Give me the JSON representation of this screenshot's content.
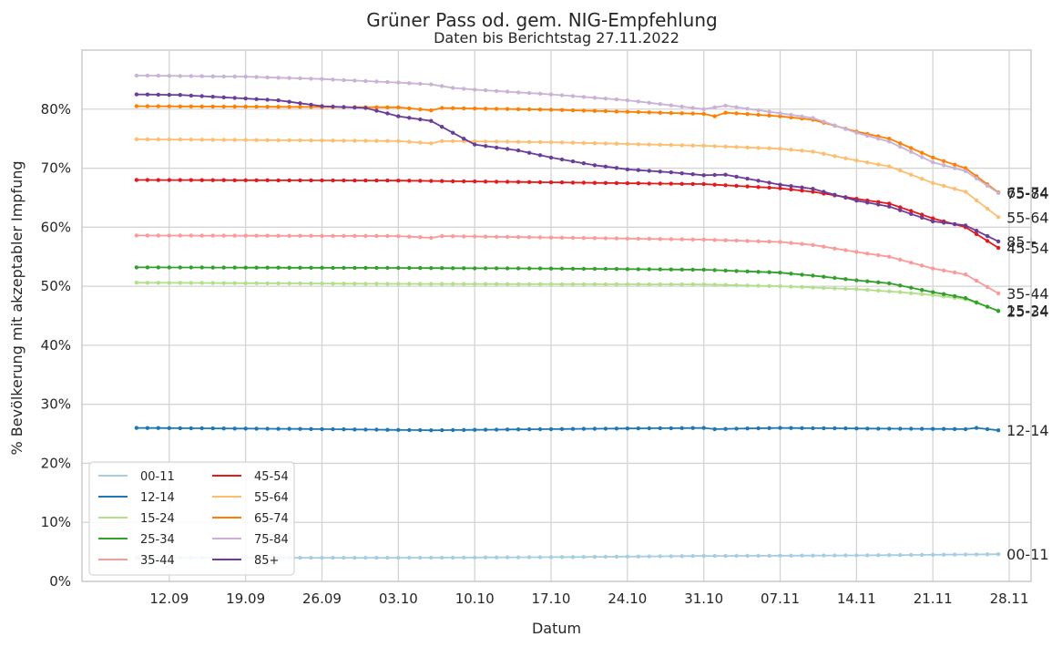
{
  "chart_data": {
    "type": "line",
    "title": "Grüner Pass od. gem. NIG-Empfehlung",
    "subtitle": "Daten bis Berichtstag 27.11.2022",
    "xlabel": "Datum",
    "ylabel": "% Bevölkerung mit akzeptabler Impfung",
    "x_ticks": [
      "12.09",
      "19.09",
      "26.09",
      "03.10",
      "10.10",
      "17.10",
      "24.10",
      "31.10",
      "07.11",
      "14.11",
      "21.11",
      "28.11"
    ],
    "y_ticks": [
      "0%",
      "10%",
      "20%",
      "30%",
      "40%",
      "50%",
      "60%",
      "70%",
      "80%"
    ],
    "xlim": [
      "2022-09-04",
      "2022-11-30"
    ],
    "ylim": [
      0,
      90
    ],
    "grid": true,
    "legend_position": "lower-left",
    "x_start": "2022-09-09",
    "x_end": "2022-11-27",
    "series": [
      {
        "name": "00-11",
        "color": "#a6cee3",
        "end_label": "00-11",
        "points": [
          [
            "2022-09-09",
            4.0
          ],
          [
            "2022-10-03",
            4.0
          ],
          [
            "2022-10-17",
            4.1
          ],
          [
            "2022-10-31",
            4.3
          ],
          [
            "2022-11-14",
            4.4
          ],
          [
            "2022-11-27",
            4.6
          ]
        ]
      },
      {
        "name": "12-14",
        "color": "#1f78b4",
        "end_label": "12-14",
        "points": [
          [
            "2022-09-09",
            26.0
          ],
          [
            "2022-09-26",
            25.8
          ],
          [
            "2022-10-06",
            25.6
          ],
          [
            "2022-10-17",
            25.8
          ],
          [
            "2022-10-31",
            26.0
          ],
          [
            "2022-11-01",
            25.8
          ],
          [
            "2022-11-07",
            26.0
          ],
          [
            "2022-11-14",
            25.9
          ],
          [
            "2022-11-24",
            25.8
          ],
          [
            "2022-11-25",
            26.0
          ],
          [
            "2022-11-27",
            25.6
          ]
        ]
      },
      {
        "name": "15-24",
        "color": "#b2df8a",
        "end_label": "15-24",
        "points": [
          [
            "2022-09-09",
            50.6
          ],
          [
            "2022-10-03",
            50.4
          ],
          [
            "2022-10-31",
            50.3
          ],
          [
            "2022-11-07",
            50.0
          ],
          [
            "2022-11-14",
            49.5
          ],
          [
            "2022-11-18",
            49.0
          ],
          [
            "2022-11-21",
            48.5
          ],
          [
            "2022-11-24",
            47.8
          ],
          [
            "2022-11-27",
            45.9
          ]
        ]
      },
      {
        "name": "25-34",
        "color": "#33a02c",
        "end_label": "25-34",
        "points": [
          [
            "2022-09-09",
            53.2
          ],
          [
            "2022-10-03",
            53.1
          ],
          [
            "2022-10-17",
            53.0
          ],
          [
            "2022-10-31",
            52.8
          ],
          [
            "2022-11-07",
            52.3
          ],
          [
            "2022-11-10",
            51.8
          ],
          [
            "2022-11-14",
            51.0
          ],
          [
            "2022-11-17",
            50.5
          ],
          [
            "2022-11-21",
            49.0
          ],
          [
            "2022-11-24",
            48.0
          ],
          [
            "2022-11-27",
            45.8
          ]
        ]
      },
      {
        "name": "35-44",
        "color": "#fb9a99",
        "end_label": "35-44",
        "points": [
          [
            "2022-09-09",
            58.6
          ],
          [
            "2022-10-03",
            58.5
          ],
          [
            "2022-10-06",
            58.2
          ],
          [
            "2022-10-07",
            58.5
          ],
          [
            "2022-10-31",
            57.9
          ],
          [
            "2022-11-07",
            57.5
          ],
          [
            "2022-11-10",
            57.0
          ],
          [
            "2022-11-14",
            55.8
          ],
          [
            "2022-11-17",
            55.0
          ],
          [
            "2022-11-21",
            53.0
          ],
          [
            "2022-11-24",
            52.0
          ],
          [
            "2022-11-27",
            48.8
          ]
        ]
      },
      {
        "name": "45-54",
        "color": "#e31a1c",
        "end_label": "45-54",
        "points": [
          [
            "2022-09-09",
            68.0
          ],
          [
            "2022-10-03",
            67.9
          ],
          [
            "2022-10-17",
            67.6
          ],
          [
            "2022-10-31",
            67.3
          ],
          [
            "2022-11-07",
            66.6
          ],
          [
            "2022-11-10",
            66.0
          ],
          [
            "2022-11-14",
            64.8
          ],
          [
            "2022-11-17",
            64.0
          ],
          [
            "2022-11-21",
            61.5
          ],
          [
            "2022-11-24",
            60.0
          ],
          [
            "2022-11-27",
            56.5
          ]
        ]
      },
      {
        "name": "55-64",
        "color": "#fdbf6f",
        "end_label": "55-64",
        "points": [
          [
            "2022-09-09",
            74.9
          ],
          [
            "2022-10-03",
            74.6
          ],
          [
            "2022-10-06",
            74.2
          ],
          [
            "2022-10-07",
            74.6
          ],
          [
            "2022-10-17",
            74.4
          ],
          [
            "2022-10-31",
            73.8
          ],
          [
            "2022-11-07",
            73.3
          ],
          [
            "2022-11-10",
            72.8
          ],
          [
            "2022-11-14",
            71.3
          ],
          [
            "2022-11-17",
            70.3
          ],
          [
            "2022-11-21",
            67.5
          ],
          [
            "2022-11-24",
            66.0
          ],
          [
            "2022-11-27",
            61.7
          ]
        ]
      },
      {
        "name": "65-74",
        "color": "#ff7f00",
        "end_label": "65-74",
        "points": [
          [
            "2022-09-09",
            80.5
          ],
          [
            "2022-10-03",
            80.3
          ],
          [
            "2022-10-06",
            79.8
          ],
          [
            "2022-10-07",
            80.2
          ],
          [
            "2022-10-17",
            79.9
          ],
          [
            "2022-10-31",
            79.2
          ],
          [
            "2022-11-01",
            78.8
          ],
          [
            "2022-11-02",
            79.4
          ],
          [
            "2022-11-07",
            78.8
          ],
          [
            "2022-11-10",
            78.2
          ],
          [
            "2022-11-14",
            76.2
          ],
          [
            "2022-11-17",
            75.0
          ],
          [
            "2022-11-21",
            71.8
          ],
          [
            "2022-11-24",
            70.0
          ],
          [
            "2022-11-27",
            65.9
          ]
        ]
      },
      {
        "name": "75-84",
        "color": "#cab2d6",
        "end_label": "75-84",
        "points": [
          [
            "2022-09-09",
            85.7
          ],
          [
            "2022-09-19",
            85.5
          ],
          [
            "2022-09-26",
            85.1
          ],
          [
            "2022-10-03",
            84.5
          ],
          [
            "2022-10-06",
            84.2
          ],
          [
            "2022-10-08",
            83.6
          ],
          [
            "2022-10-10",
            83.3
          ],
          [
            "2022-10-17",
            82.5
          ],
          [
            "2022-10-24",
            81.5
          ],
          [
            "2022-10-31",
            80.0
          ],
          [
            "2022-11-02",
            80.6
          ],
          [
            "2022-11-07",
            79.3
          ],
          [
            "2022-11-10",
            78.5
          ],
          [
            "2022-11-14",
            76.0
          ],
          [
            "2022-11-17",
            74.5
          ],
          [
            "2022-11-21",
            71.0
          ],
          [
            "2022-11-24",
            69.5
          ],
          [
            "2022-11-27",
            65.8
          ]
        ]
      },
      {
        "name": "85+",
        "color": "#6a3d9a",
        "end_label": "85+",
        "points": [
          [
            "2022-09-09",
            82.5
          ],
          [
            "2022-09-13",
            82.4
          ],
          [
            "2022-09-19",
            81.8
          ],
          [
            "2022-09-22",
            81.5
          ],
          [
            "2022-09-26",
            80.5
          ],
          [
            "2022-09-30",
            80.2
          ],
          [
            "2022-10-03",
            78.8
          ],
          [
            "2022-10-06",
            78.0
          ],
          [
            "2022-10-09",
            75.0
          ],
          [
            "2022-10-10",
            74.0
          ],
          [
            "2022-10-14",
            73.0
          ],
          [
            "2022-10-17",
            71.8
          ],
          [
            "2022-10-21",
            70.5
          ],
          [
            "2022-10-24",
            69.8
          ],
          [
            "2022-10-28",
            69.3
          ],
          [
            "2022-10-31",
            68.8
          ],
          [
            "2022-11-02",
            68.9
          ],
          [
            "2022-11-07",
            67.2
          ],
          [
            "2022-11-10",
            66.5
          ],
          [
            "2022-11-14",
            64.5
          ],
          [
            "2022-11-17",
            63.5
          ],
          [
            "2022-11-21",
            61.0
          ],
          [
            "2022-11-24",
            60.3
          ],
          [
            "2022-11-27",
            57.6
          ]
        ]
      }
    ]
  }
}
